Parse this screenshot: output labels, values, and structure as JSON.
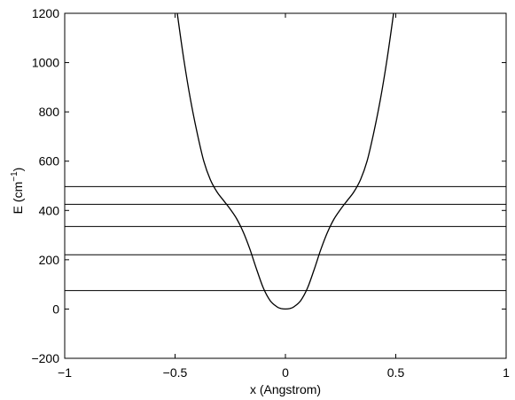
{
  "chart_data": {
    "type": "line",
    "title": "",
    "xlabel": "x   (Angstrom)",
    "ylabel_main": "E   (cm",
    "ylabel_sup": "−1",
    "ylabel_close": ")",
    "xlim": [
      -1,
      1
    ],
    "ylim": [
      -200,
      1200
    ],
    "grid": false,
    "legend": "none",
    "x_ticks": [
      -1,
      -0.5,
      0,
      0.5,
      1
    ],
    "x_tick_labels": [
      "−1",
      "−0.5",
      "0",
      "0.5",
      "1"
    ],
    "y_ticks": [
      -200,
      0,
      200,
      400,
      600,
      800,
      1000,
      1200
    ],
    "y_tick_labels": [
      "−200",
      "0",
      "200",
      "400",
      "600",
      "800",
      "1000",
      "1200"
    ],
    "energy_levels": [
      75,
      220,
      335,
      425,
      497
    ],
    "potential_curve": {
      "x": [
        -0.49,
        -0.46,
        -0.43,
        -0.4,
        -0.37,
        -0.34,
        -0.31,
        -0.28,
        -0.25,
        -0.22,
        -0.19,
        -0.16,
        -0.13,
        -0.1,
        -0.07,
        -0.04,
        -0.02,
        0,
        0.02,
        0.04,
        0.07,
        0.1,
        0.13,
        0.16,
        0.19,
        0.22,
        0.25,
        0.28,
        0.31,
        0.34,
        0.37,
        0.4,
        0.43,
        0.46,
        0.49
      ],
      "y": [
        1200,
        1010,
        850,
        715,
        600,
        525,
        475,
        440,
        405,
        365,
        310,
        240,
        160,
        85,
        35,
        10,
        2,
        0,
        2,
        10,
        35,
        85,
        160,
        240,
        310,
        365,
        405,
        440,
        475,
        525,
        600,
        715,
        850,
        1010,
        1200
      ]
    }
  }
}
